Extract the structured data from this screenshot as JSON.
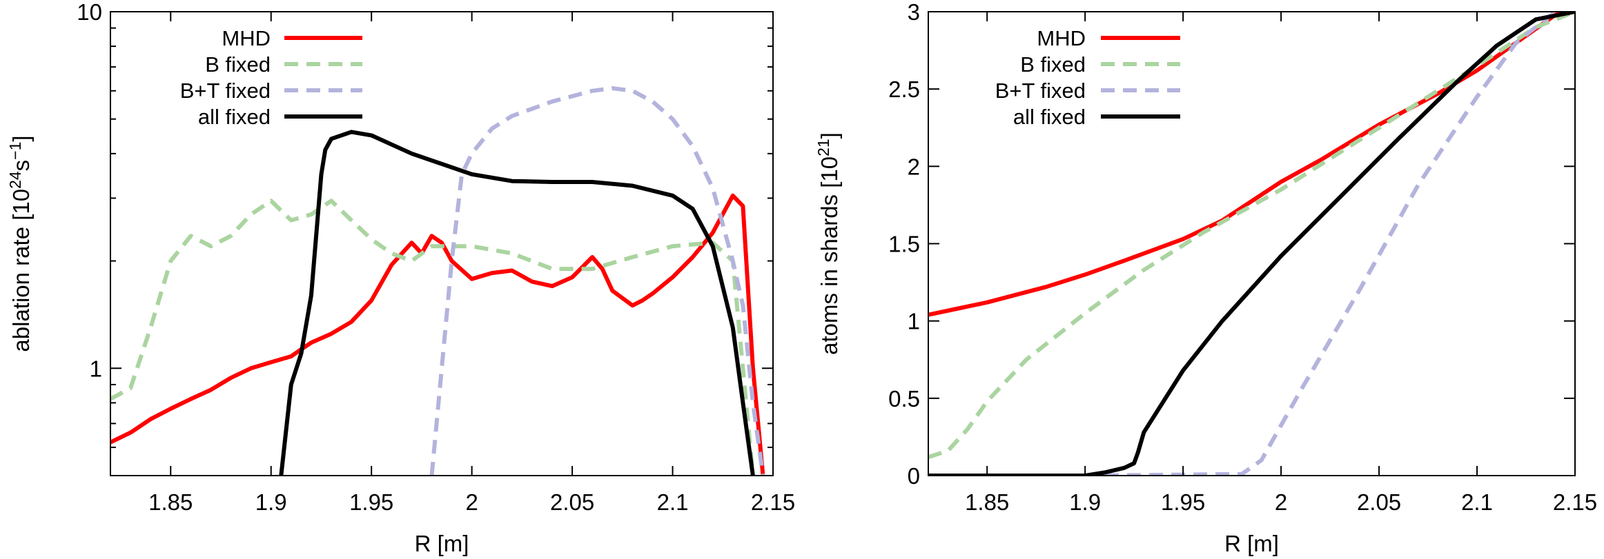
{
  "chart_data": [
    {
      "type": "line",
      "title": "",
      "xlabel": "R [m]",
      "ylabel": "ablation rate [10^24 s^-1]",
      "ylabel_parts": {
        "base": "ablation rate [10",
        "exp1": "24",
        "mid": "s",
        "exp2": "−1",
        "end": "]"
      },
      "xlim": [
        1.82,
        2.15
      ],
      "ylim": [
        0.5,
        10
      ],
      "yscale": "log",
      "xticks": [
        1.85,
        1.9,
        1.95,
        2.0,
        2.05,
        2.1,
        2.15
      ],
      "xtick_labels": [
        "1.85",
        "1.9",
        "1.95",
        "2",
        "2.05",
        "2.1",
        "2.15"
      ],
      "yticks": [
        1,
        10
      ],
      "ytick_labels": [
        "1",
        "10"
      ],
      "legend_position": "top-left",
      "series": [
        {
          "name": "MHD",
          "color": "#ff0000",
          "dash": "solid",
          "x": [
            1.82,
            1.83,
            1.84,
            1.85,
            1.86,
            1.87,
            1.88,
            1.89,
            1.9,
            1.91,
            1.915,
            1.92,
            1.93,
            1.94,
            1.95,
            1.96,
            1.97,
            1.975,
            1.98,
            1.985,
            1.99,
            2.0,
            2.01,
            2.02,
            2.03,
            2.04,
            2.05,
            2.06,
            2.065,
            2.07,
            2.08,
            2.085,
            2.09,
            2.1,
            2.11,
            2.12,
            2.13,
            2.135,
            2.14,
            2.145
          ],
          "y": [
            0.62,
            0.66,
            0.72,
            0.77,
            0.82,
            0.87,
            0.94,
            1.0,
            1.04,
            1.08,
            1.13,
            1.18,
            1.25,
            1.35,
            1.55,
            1.95,
            2.25,
            2.1,
            2.35,
            2.25,
            2.0,
            1.78,
            1.85,
            1.88,
            1.75,
            1.7,
            1.8,
            2.05,
            1.9,
            1.65,
            1.5,
            1.55,
            1.62,
            1.8,
            2.05,
            2.4,
            3.05,
            2.85,
            1.0,
            0.5
          ]
        },
        {
          "name": "B fixed",
          "color": "#aad4a0",
          "dash": "dashed",
          "x": [
            1.82,
            1.83,
            1.84,
            1.85,
            1.86,
            1.87,
            1.88,
            1.89,
            1.9,
            1.91,
            1.92,
            1.93,
            1.94,
            1.95,
            1.96,
            1.97,
            1.98,
            1.99,
            2.0,
            2.02,
            2.04,
            2.06,
            2.08,
            2.1,
            2.12,
            2.13,
            2.14
          ],
          "y": [
            0.82,
            0.88,
            1.3,
            2.0,
            2.35,
            2.2,
            2.35,
            2.7,
            2.95,
            2.6,
            2.7,
            2.95,
            2.6,
            2.3,
            2.1,
            2.0,
            2.2,
            2.2,
            2.2,
            2.1,
            1.9,
            1.9,
            2.05,
            2.2,
            2.25,
            2.0,
            0.5
          ]
        },
        {
          "name": "B+T fixed",
          "color": "#b3b3dd",
          "dash": "dashed",
          "x": [
            1.98,
            1.985,
            1.99,
            1.995,
            2.0,
            2.01,
            2.02,
            2.04,
            2.06,
            2.07,
            2.08,
            2.09,
            2.1,
            2.11,
            2.12,
            2.13,
            2.135,
            2.14,
            2.145
          ],
          "y": [
            0.5,
            1.0,
            2.0,
            3.5,
            4.0,
            4.7,
            5.1,
            5.6,
            6.0,
            6.1,
            6.0,
            5.6,
            5.0,
            4.2,
            3.2,
            2.0,
            1.5,
            0.8,
            0.5
          ]
        },
        {
          "name": "all fixed",
          "color": "#000000",
          "dash": "solid",
          "x": [
            1.905,
            1.91,
            1.915,
            1.92,
            1.925,
            1.927,
            1.93,
            1.94,
            1.95,
            1.97,
            2.0,
            2.02,
            2.04,
            2.06,
            2.08,
            2.1,
            2.11,
            2.12,
            2.13,
            2.135,
            2.14
          ],
          "y": [
            0.5,
            0.9,
            1.1,
            1.6,
            3.5,
            4.1,
            4.4,
            4.6,
            4.5,
            4.0,
            3.5,
            3.35,
            3.33,
            3.33,
            3.25,
            3.05,
            2.8,
            2.2,
            1.3,
            0.8,
            0.5
          ]
        }
      ]
    },
    {
      "type": "line",
      "title": "",
      "xlabel": "R [m]",
      "ylabel": "atoms in shards [10^21]",
      "ylabel_parts": {
        "base": "atoms in shards [10",
        "exp1": "21",
        "mid": "",
        "exp2": "",
        "end": "]"
      },
      "xlim": [
        1.82,
        2.15
      ],
      "ylim": [
        0,
        3
      ],
      "yscale": "linear",
      "xticks": [
        1.85,
        1.9,
        1.95,
        2.0,
        2.05,
        2.1,
        2.15
      ],
      "xtick_labels": [
        "1.85",
        "1.9",
        "1.95",
        "2",
        "2.05",
        "2.1",
        "2.15"
      ],
      "yticks": [
        0,
        0.5,
        1,
        1.5,
        2,
        2.5,
        3
      ],
      "ytick_labels": [
        "0",
        "0.5",
        "1",
        "1.5",
        "2",
        "2.5",
        "3"
      ],
      "legend_position": "top-left",
      "series": [
        {
          "name": "MHD",
          "color": "#ff0000",
          "dash": "solid",
          "x": [
            1.82,
            1.85,
            1.88,
            1.9,
            1.92,
            1.95,
            1.97,
            2.0,
            2.02,
            2.05,
            2.08,
            2.1,
            2.12,
            2.14,
            2.15
          ],
          "y": [
            1.04,
            1.12,
            1.22,
            1.3,
            1.39,
            1.53,
            1.65,
            1.9,
            2.04,
            2.27,
            2.47,
            2.62,
            2.8,
            2.98,
            3.0
          ]
        },
        {
          "name": "B fixed",
          "color": "#aad4a0",
          "dash": "dashed",
          "x": [
            1.82,
            1.83,
            1.84,
            1.85,
            1.87,
            1.9,
            1.93,
            1.96,
            2.0,
            2.05,
            2.1,
            2.13,
            2.15
          ],
          "y": [
            0.12,
            0.16,
            0.3,
            0.48,
            0.75,
            1.05,
            1.33,
            1.57,
            1.85,
            2.25,
            2.65,
            2.9,
            3.0
          ]
        },
        {
          "name": "B+T fixed",
          "color": "#b3b3dd",
          "dash": "dashed",
          "x": [
            1.82,
            1.9,
            1.98,
            1.99,
            2.01,
            2.04,
            2.07,
            2.1,
            2.12,
            2.14,
            2.15
          ],
          "y": [
            0.0,
            0.0,
            0.01,
            0.1,
            0.55,
            1.2,
            1.88,
            2.45,
            2.8,
            3.0,
            3.0
          ]
        },
        {
          "name": "all fixed",
          "color": "#000000",
          "dash": "solid",
          "x": [
            1.82,
            1.9,
            1.91,
            1.92,
            1.925,
            1.927,
            1.93,
            1.95,
            1.97,
            2.0,
            2.03,
            2.06,
            2.09,
            2.11,
            2.13,
            2.15
          ],
          "y": [
            0.0,
            0.0,
            0.02,
            0.05,
            0.08,
            0.15,
            0.28,
            0.68,
            1.0,
            1.42,
            1.8,
            2.18,
            2.55,
            2.78,
            2.95,
            3.0
          ]
        }
      ]
    }
  ]
}
